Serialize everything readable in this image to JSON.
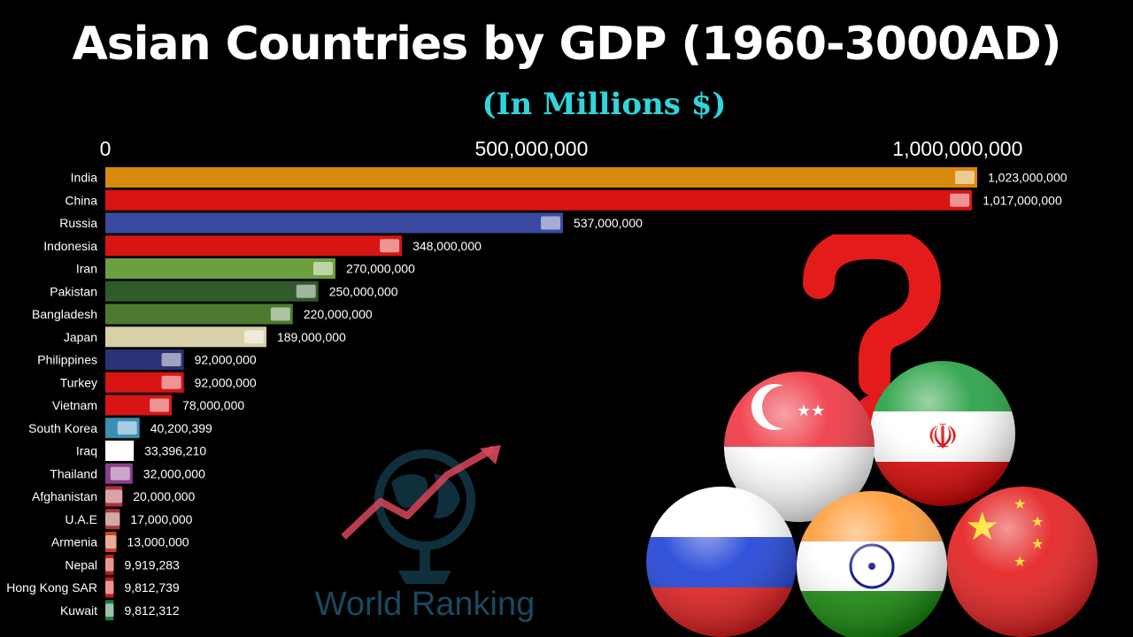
{
  "title": "Asian Countries by GDP (1960-3000AD)",
  "subtitle": "(In Millions $)",
  "watermark_text": "World Ranking",
  "chart_data": {
    "type": "bar",
    "orientation": "horizontal",
    "title": "Asian Countries by GDP (1960-3000AD)",
    "subtitle": "(In Millions $)",
    "xlim": [
      0,
      1023000000
    ],
    "xticks": [
      0,
      500000000,
      1000000000
    ],
    "xtick_labels": [
      "0",
      "500,000,000",
      "1,000,000,000"
    ],
    "axis_position": "top",
    "categories": [
      "India",
      "China",
      "Russia",
      "Indonesia",
      "Iran",
      "Pakistan",
      "Bangladesh",
      "Japan",
      "Philippines",
      "Turkey",
      "Vietnam",
      "South Korea",
      "Iraq",
      "Thailand",
      "Afghanistan",
      "U.A.E",
      "Armenia",
      "Nepal",
      "Hong Kong SAR",
      "Kuwait"
    ],
    "values": [
      1023000000,
      1017000000,
      537000000,
      348000000,
      270000000,
      250000000,
      220000000,
      189000000,
      92000000,
      92000000,
      78000000,
      40200399,
      33396210,
      32000000,
      20000000,
      17000000,
      13000000,
      9919283,
      9812739,
      9812312
    ],
    "value_labels": [
      "1,023,000,000",
      "1,017,000,000",
      "537,000,000",
      "348,000,000",
      "270,000,000",
      "250,000,000",
      "220,000,000",
      "189,000,000",
      "92,000,000",
      "92,000,000",
      "78,000,000",
      "40,200,399",
      "33,396,210",
      "32,000,000",
      "20,000,000",
      "17,000,000",
      "13,000,000",
      "9,919,283",
      "9,812,739",
      "9,812,312"
    ],
    "colors": [
      "#d88a0c",
      "#d81414",
      "#3a4aa2",
      "#d81414",
      "#6c9f3e",
      "#2f5a2a",
      "#4d7a2f",
      "#d8d0a8",
      "#2a3276",
      "#d81414",
      "#d81414",
      "#3a8fb4",
      "#ffffff",
      "#8b3f8a",
      "#b03040",
      "#a33a3a",
      "#d04020",
      "#c01a1a",
      "#c8141e",
      "#1f7a3a"
    ],
    "flag_icons": [
      "flag-india-icon",
      "flag-china-icon",
      "flag-russia-icon",
      "flag-indonesia-icon",
      "flag-iran-icon",
      "flag-pakistan-icon",
      "flag-bangladesh-icon",
      "flag-japan-icon",
      "flag-philippines-icon",
      "flag-turkey-icon",
      "flag-vietnam-icon",
      "flag-south-korea-icon",
      "flag-iraq-icon",
      "flag-thailand-icon",
      "flag-afghanistan-icon",
      "flag-uae-icon",
      "flag-armenia-icon",
      "flag-nepal-icon",
      "flag-hong-kong-icon",
      "flag-kuwait-icon"
    ],
    "grid": false,
    "legend": "none"
  }
}
